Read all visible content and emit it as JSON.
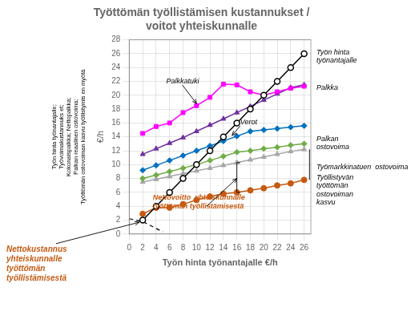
{
  "chart_data": {
    "type": "line",
    "title": "Työttömän työllistämisen kustannukset /\nvoitot yhteiskunnalle",
    "xlabel": "Työn hinta työnantajalle €/h",
    "ylabel": "€/h",
    "xlim": [
      0,
      27
    ],
    "ylim": [
      0,
      28
    ],
    "xticks": [
      0,
      2,
      4,
      6,
      8,
      10,
      12,
      14,
      16,
      18,
      20,
      22,
      24,
      26
    ],
    "yticks": [
      0,
      2,
      4,
      6,
      8,
      10,
      12,
      14,
      16,
      18,
      20,
      22,
      24,
      26,
      28
    ],
    "grid": true,
    "x": [
      2,
      4,
      6,
      8,
      10,
      12,
      14,
      16,
      18,
      20,
      22,
      24,
      26
    ],
    "series": [
      {
        "color": "#000000",
        "marker": "open_circle",
        "values": [
          2,
          4,
          6,
          8,
          10,
          12,
          14,
          16,
          18,
          20,
          22,
          24,
          26
        ]
      },
      {
        "color": "#ff00ff",
        "marker": "square",
        "values": [
          14.5,
          15.5,
          16.0,
          17.5,
          18.5,
          19.7,
          21.6,
          21.5,
          20.5,
          20.0,
          20.5,
          21.0,
          21.3
        ]
      },
      {
        "color": "#7030a0",
        "marker": "triangle",
        "values": [
          11.5,
          12.3,
          13.1,
          13.9,
          14.8,
          15.7,
          16.6,
          17.5,
          18.4,
          19.3,
          20.2,
          21.1,
          21.5
        ]
      },
      {
        "color": "#0070c0",
        "marker": "diamond",
        "values": [
          9.2,
          9.9,
          10.6,
          11.3,
          12.0,
          12.7,
          13.4,
          14.1,
          14.8,
          15.0,
          15.2,
          15.4,
          15.6
        ]
      },
      {
        "color": "#70ad47",
        "marker": "diamond",
        "values": [
          8.0,
          8.5,
          9.0,
          9.5,
          10.0,
          10.6,
          11.2,
          11.8,
          12.0,
          12.3,
          12.5,
          12.8,
          13.0
        ]
      },
      {
        "color": "#a6a6a6",
        "marker": "triangle",
        "values": [
          7.5,
          7.9,
          8.3,
          8.7,
          9.1,
          9.5,
          9.9,
          10.3,
          10.7,
          11.1,
          11.5,
          11.9,
          12.2
        ]
      },
      {
        "color": "#c55a11",
        "marker": "circle",
        "values": [
          2.9,
          3.8,
          3.8,
          4.3,
          4.9,
          5.4,
          5.8,
          6.0,
          6.3,
          6.6,
          7.0,
          7.3,
          7.8
        ]
      },
      {
        "color": "#000000",
        "marker": "none",
        "line_style": "dashed",
        "x": [
          0,
          2,
          3,
          5
        ],
        "values": [
          2.2,
          1.8,
          1.3,
          0.3
        ]
      }
    ],
    "annotations": [
      {
        "text": "Työn hinta\ntyönantajalle"
      },
      {
        "text": "Palkka"
      },
      {
        "text": "Palkan\nostovoima"
      },
      {
        "text": "Työmarkkinatuen  ostovoima"
      },
      {
        "text": "Työllistyvän\ntyöttömän\nostovoiman\nkasvu"
      },
      {
        "text": "Verot"
      },
      {
        "text": "Palkkatuki"
      },
      {
        "text": "Nettovoitto  yhteiskunnalle\ntyöttömän työllistämisestä",
        "color": "#c55a11"
      },
      {
        "text": "Työn hinta työnantajalle;\nTyövoimakustannuks et;\nKokonaispalkka; Nettopalkka;\nPalkan reaalinen ostovoima;\nTyöttömän ostovoiman kasvu työllistymis en myötä"
      },
      {
        "text": "Nettokustannus\nyhteiskunnalle\ntyöttömän\ntyöllistämisestä",
        "color": "#c55a11"
      }
    ]
  }
}
